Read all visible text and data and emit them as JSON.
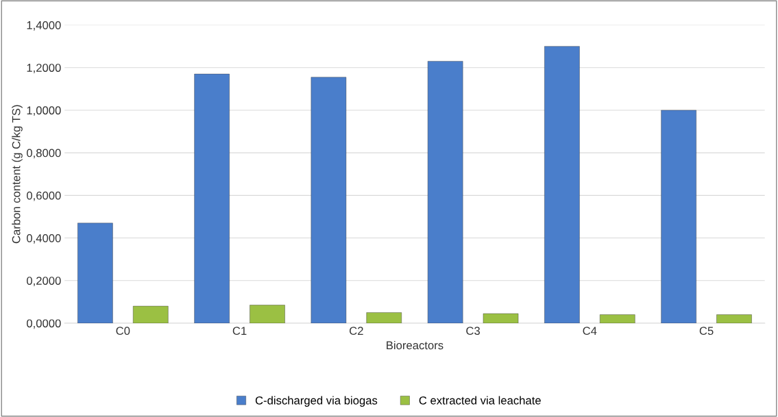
{
  "chart_data": {
    "type": "bar",
    "xlabel": "Bioreactors",
    "ylabel": "Carbon content (g C/kg TS)",
    "categories": [
      "C0",
      "C1",
      "C2",
      "C3",
      "C4",
      "C5"
    ],
    "series": [
      {
        "name": "C-discharged via biogas",
        "color": "#4a7ecb",
        "values": [
          0.47,
          1.17,
          1.155,
          1.23,
          1.3,
          1.0
        ]
      },
      {
        "name": "C extracted via leachate",
        "color": "#9bc043",
        "values": [
          0.08,
          0.085,
          0.05,
          0.045,
          0.04,
          0.04
        ]
      }
    ],
    "ylim": [
      0,
      1.4
    ],
    "yticks": [
      {
        "value": 0,
        "label": "0,0000"
      },
      {
        "value": 0.2,
        "label": "0,2000"
      },
      {
        "value": 0.4,
        "label": "0,4000"
      },
      {
        "value": 0.6,
        "label": "0,6000"
      },
      {
        "value": 0.8,
        "label": "0,8000"
      },
      {
        "value": 1.0,
        "label": "1,0000"
      },
      {
        "value": 1.2,
        "label": "1,2000"
      },
      {
        "value": 1.4,
        "label": "1,4000"
      }
    ],
    "grid": "y",
    "legend": "bottom"
  }
}
